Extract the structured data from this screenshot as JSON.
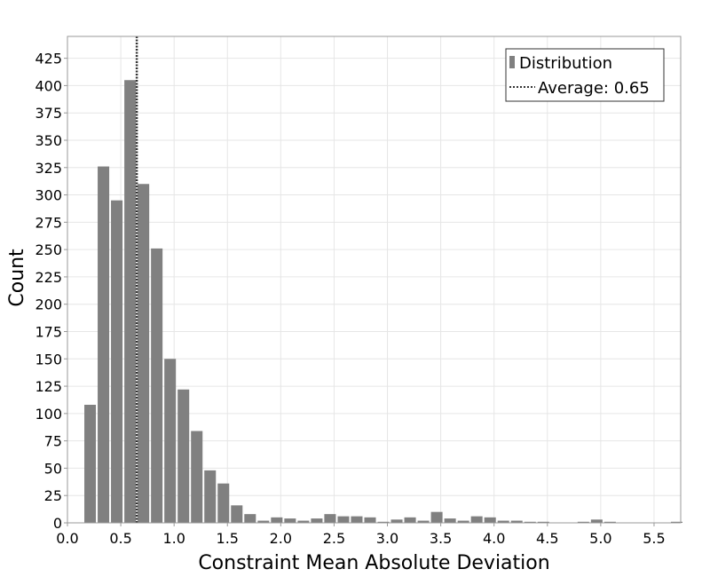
{
  "chart_data": {
    "type": "bar",
    "xlabel": "Constraint Mean Absolute Deviation",
    "ylabel": "Count",
    "xlim": [
      0.0,
      5.75
    ],
    "ylim": [
      0,
      445
    ],
    "x_ticks": [
      "0.0",
      "0.5",
      "1.0",
      "1.5",
      "2.0",
      "2.5",
      "3.0",
      "3.5",
      "4.0",
      "4.5",
      "5.0",
      "5.5"
    ],
    "y_ticks": [
      "0",
      "25",
      "50",
      "75",
      "100",
      "125",
      "150",
      "175",
      "200",
      "225",
      "250",
      "275",
      "300",
      "325",
      "350",
      "375",
      "400",
      "425"
    ],
    "grid": true,
    "legend_position": "top-right",
    "bin_width": 0.125,
    "bins_start": [
      0.15,
      0.275,
      0.4,
      0.525,
      0.65,
      0.775,
      0.9,
      1.025,
      1.15,
      1.275,
      1.4,
      1.525,
      1.65,
      1.775,
      1.9,
      2.025,
      2.15,
      2.275,
      2.4,
      2.525,
      2.65,
      2.775,
      2.9,
      3.025,
      3.15,
      3.275,
      3.4,
      3.525,
      3.65,
      3.775,
      3.9,
      4.025,
      4.15,
      4.275,
      4.4,
      4.525,
      4.65,
      4.775,
      4.9,
      5.025,
      5.15,
      5.275,
      5.4,
      5.525,
      5.65
    ],
    "values": [
      108,
      326,
      295,
      405,
      310,
      251,
      150,
      122,
      84,
      48,
      36,
      16,
      8,
      2,
      5,
      4,
      2,
      4,
      8,
      6,
      6,
      5,
      1,
      3,
      5,
      2,
      10,
      4,
      2,
      6,
      5,
      2,
      2,
      1,
      1,
      0,
      0,
      1,
      3,
      1,
      0,
      0,
      0,
      0,
      1
    ],
    "series": [
      {
        "name": "Distribution",
        "type": "bar",
        "color": "#808080"
      },
      {
        "name": "Average: 0.65",
        "type": "vline",
        "value": 0.65,
        "style": "dotted",
        "color": "#333333"
      }
    ]
  }
}
